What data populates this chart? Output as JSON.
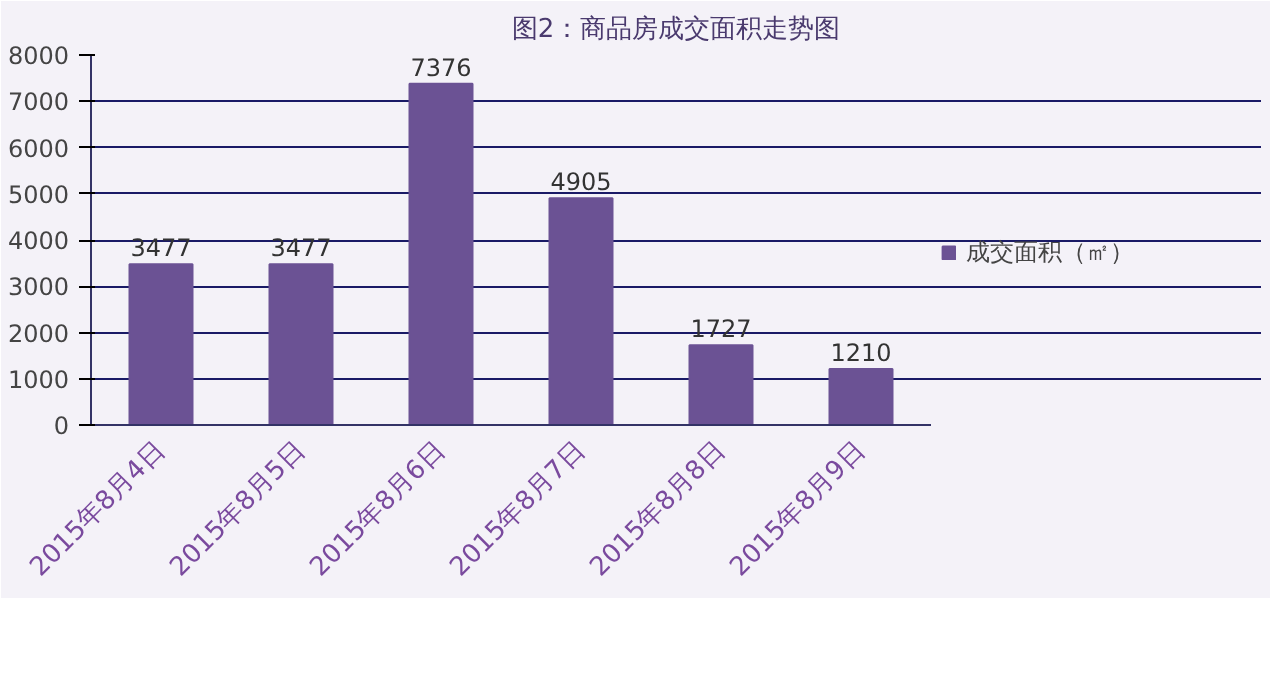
{
  "chart_data": {
    "type": "bar",
    "title": "图2：商品房成交面积走势图",
    "categories": [
      "2015年8月4日",
      "2015年8月5日",
      "2015年8月6日",
      "2015年8月7日",
      "2015年8月8日",
      "2015年8月9日"
    ],
    "series": [
      {
        "name": "成交面积（㎡）",
        "color": "#6b5294",
        "values": [
          3477,
          3477,
          7376,
          4905,
          1727,
          1210
        ]
      }
    ],
    "ylim": [
      0,
      8000
    ],
    "yticks": [
      0,
      1000,
      2000,
      3000,
      4000,
      5000,
      6000,
      7000,
      8000
    ],
    "grid": "y",
    "legend": "right",
    "data_labels": true
  }
}
